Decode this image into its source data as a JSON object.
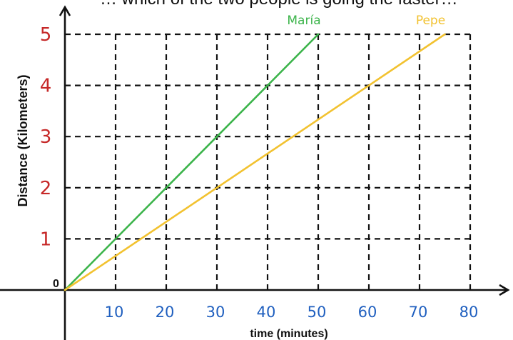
{
  "top_caption": "… which of the two people is going the faster…",
  "chart_data": {
    "type": "line",
    "title": "",
    "xlabel": "time (minutes)",
    "ylabel": "Distance (Kilometers)",
    "origin_label": "0",
    "xlim": [
      0,
      80
    ],
    "ylim": [
      0,
      5
    ],
    "x_ticks": [
      10,
      20,
      30,
      40,
      50,
      60,
      70,
      80
    ],
    "x_tick_labels": [
      "10",
      "20",
      "30",
      "40",
      "50",
      "60",
      "70",
      "80"
    ],
    "y_ticks": [
      1,
      2,
      3,
      4,
      5
    ],
    "y_tick_labels": [
      "1",
      "2",
      "3",
      "4",
      "5"
    ],
    "grid": true,
    "grid_style": "dashed",
    "series": [
      {
        "name": "María",
        "color": "#3cb44b",
        "x": [
          0,
          50
        ],
        "y": [
          0,
          5
        ]
      },
      {
        "name": "Pepe",
        "color": "#f2c230",
        "x": [
          0,
          75
        ],
        "y": [
          0,
          5
        ]
      }
    ],
    "colors": {
      "x_tick_labels": "#1f5fbf",
      "y_tick_labels": "#c62828",
      "axes": "#111111",
      "grid": "#111111"
    }
  }
}
